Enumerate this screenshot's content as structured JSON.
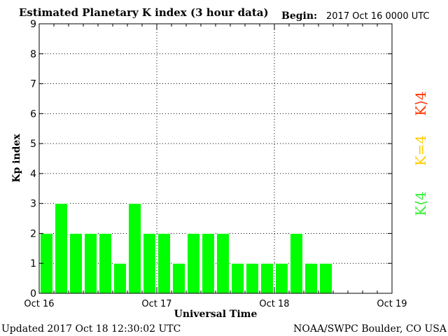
{
  "header": {
    "title": "Estimated Planetary K index (3 hour data)",
    "begin_label": "Begin:",
    "begin_value": "2017 Oct 16 0000 UTC"
  },
  "footer": {
    "updated": "Updated 2017 Oct 18 12:30:02 UTC",
    "source": "NOAA/SWPC Boulder, CO USA"
  },
  "legend": {
    "high": {
      "text": "K⟩4",
      "color": "#ff3300"
    },
    "equal": {
      "text": "K=4",
      "color": "#ffcc00"
    },
    "low": {
      "text": "K⟨4",
      "color": "#33ee33"
    }
  },
  "colors": {
    "bar_low": "#00ff00",
    "bar_edge": "#ffffff",
    "axis": "#000000",
    "grid": "#000000"
  },
  "chart_data": {
    "type": "bar",
    "title": "Estimated Planetary K index (3 hour data)",
    "xlabel": "Universal Time",
    "ylabel": "Kp index",
    "ylim": [
      0,
      9
    ],
    "yticks": [
      "0",
      "1",
      "2",
      "3",
      "4",
      "5",
      "6",
      "7",
      "8",
      "9"
    ],
    "xticks": [
      "Oct 16",
      "Oct 17",
      "Oct 18",
      "Oct 19"
    ],
    "x_range_days": 3,
    "interval_hours": 3,
    "grid": true,
    "values": [
      2,
      3,
      2,
      2,
      2,
      1,
      3,
      2,
      2,
      1,
      2,
      2,
      2,
      1,
      1,
      1,
      1,
      2,
      1,
      1
    ]
  }
}
